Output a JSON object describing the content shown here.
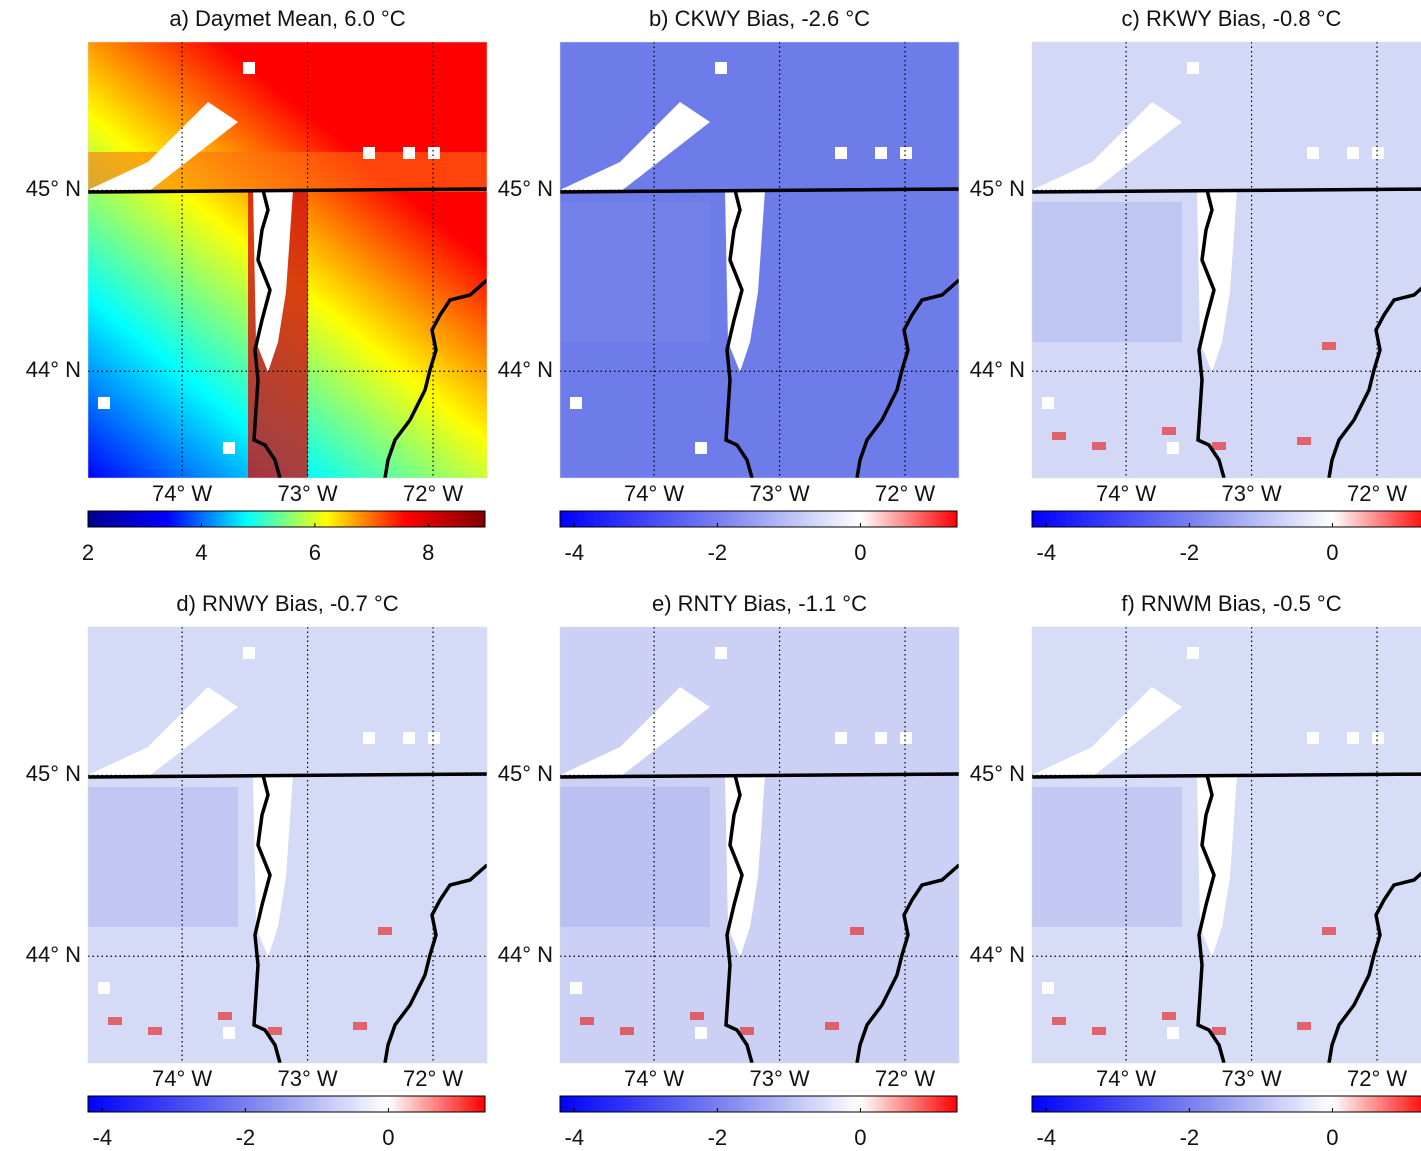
{
  "figure": {
    "lon_lim": [
      -74.75,
      -71.57
    ],
    "lat_lim": [
      43.41,
      45.82
    ],
    "panels": [
      {
        "title": "a) Daymet Mean, 6.0 °C",
        "lon_ticks": [
          {
            "value": -74,
            "label": "74° W"
          },
          {
            "value": -73,
            "label": "73° W"
          },
          {
            "value": -72,
            "label": "72° W"
          }
        ],
        "lat_ticks": [
          {
            "value": 45,
            "label": "45° N"
          },
          {
            "value": 44,
            "label": "44° N"
          }
        ],
        "colorbar": {
          "clim": [
            2,
            9
          ],
          "ticks": [
            2,
            4,
            6,
            8
          ],
          "colors": [
            "#00008f",
            "#0000ff",
            "#00ffff",
            "#ffff00",
            "#ff0000",
            "#800000"
          ]
        }
      },
      {
        "title": "b) CKWY Bias, -2.6 °C",
        "lon_ticks": [
          {
            "value": -74,
            "label": "74° W"
          },
          {
            "value": -73,
            "label": "73° W"
          },
          {
            "value": -72,
            "label": "72° W"
          }
        ],
        "lat_ticks": [
          {
            "value": 45,
            "label": "45° N"
          },
          {
            "value": 44,
            "label": "44° N"
          }
        ],
        "colorbar": {
          "clim": [
            -4.2,
            1.35
          ],
          "ticks": [
            -4,
            -2,
            0
          ],
          "colors": [
            "#0000ff",
            "#7d86ef",
            "#ffffff",
            "#ff0000"
          ],
          "zero": 0
        }
      },
      {
        "title": "c) RKWY Bias, -0.8 °C",
        "lon_ticks": [
          {
            "value": -74,
            "label": "74° W"
          },
          {
            "value": -73,
            "label": "73° W"
          },
          {
            "value": -72,
            "label": "72° W"
          }
        ],
        "lat_ticks": [
          {
            "value": 45,
            "label": "45° N"
          },
          {
            "value": 44,
            "label": "44° N"
          }
        ],
        "colorbar": {
          "clim": [
            -4.2,
            1.35
          ],
          "ticks": [
            -4,
            -2,
            0
          ],
          "colors": [
            "#0000ff",
            "#7d86ef",
            "#ffffff",
            "#ff0000"
          ],
          "zero": 0
        }
      },
      {
        "title": "d) RNWY Bias, -0.7 °C",
        "lon_ticks": [
          {
            "value": -74,
            "label": "74° W"
          },
          {
            "value": -73,
            "label": "73° W"
          },
          {
            "value": -72,
            "label": "72° W"
          }
        ],
        "lat_ticks": [
          {
            "value": 45,
            "label": "45° N"
          },
          {
            "value": 44,
            "label": "44° N"
          }
        ],
        "colorbar": {
          "clim": [
            -4.2,
            1.35
          ],
          "ticks": [
            -4,
            -2,
            0
          ],
          "colors": [
            "#0000ff",
            "#7d86ef",
            "#ffffff",
            "#ff0000"
          ],
          "zero": 0
        }
      },
      {
        "title": "e) RNTY Bias, -1.1 °C",
        "lon_ticks": [
          {
            "value": -74,
            "label": "74° W"
          },
          {
            "value": -73,
            "label": "73° W"
          },
          {
            "value": -72,
            "label": "72° W"
          }
        ],
        "lat_ticks": [
          {
            "value": 45,
            "label": "45° N"
          },
          {
            "value": 44,
            "label": "44° N"
          }
        ],
        "colorbar": {
          "clim": [
            -4.2,
            1.35
          ],
          "ticks": [
            -4,
            -2,
            0
          ],
          "colors": [
            "#0000ff",
            "#7d86ef",
            "#ffffff",
            "#ff0000"
          ],
          "zero": 0
        }
      },
      {
        "title": "f) RNWM Bias, -0.5 °C",
        "lon_ticks": [
          {
            "value": -74,
            "label": "74° W"
          },
          {
            "value": -73,
            "label": "73° W"
          },
          {
            "value": -72,
            "label": "72° W"
          }
        ],
        "lat_ticks": [
          {
            "value": 45,
            "label": "45° N"
          },
          {
            "value": 44,
            "label": "44° N"
          }
        ],
        "colorbar": {
          "clim": [
            -4.2,
            1.35
          ],
          "ticks": [
            -4,
            -2,
            0
          ],
          "colors": [
            "#0000ff",
            "#7d86ef",
            "#ffffff",
            "#ff0000"
          ],
          "zero": 0
        }
      }
    ]
  }
}
